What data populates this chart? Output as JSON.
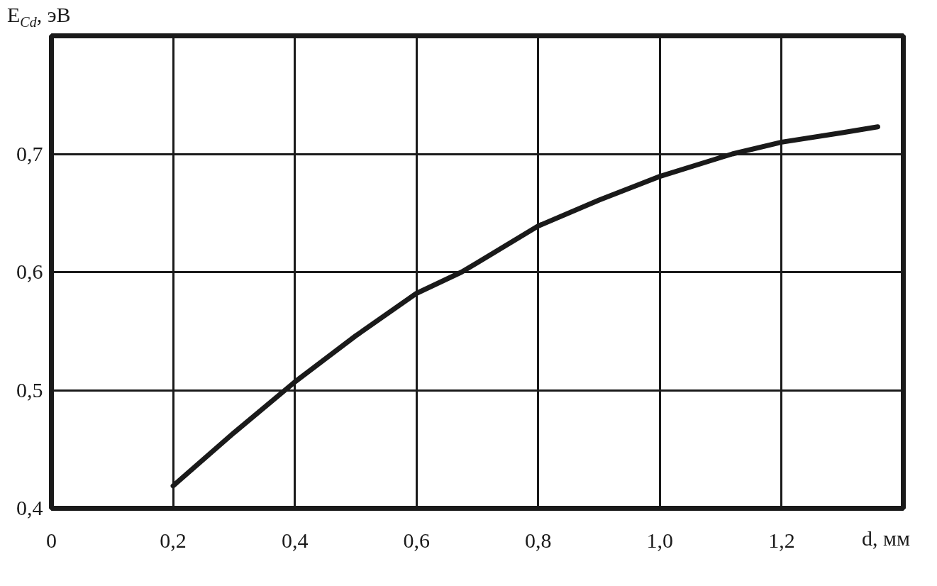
{
  "chart_data": {
    "type": "line",
    "xlabel": "d, мм",
    "ylabel": "E$_{Cd}$, эВ",
    "x": [
      0.2,
      0.3,
      0.4,
      0.5,
      0.6,
      0.674,
      0.7,
      0.8,
      0.9,
      1.0,
      1.1,
      1.119,
      1.2,
      1.3,
      1.358
    ],
    "series": [
      {
        "color": "#1a1a1a",
        "values": [
          0.419,
          0.464,
          0.507,
          0.546,
          0.582,
          0.6,
          0.608,
          0.639,
          0.661,
          0.681,
          0.697,
          0.7,
          0.71,
          0.718,
          0.723
        ]
      }
    ],
    "xlim": [
      0,
      1.4
    ],
    "ylim": [
      0.4,
      0.8
    ],
    "xticks": [
      0,
      {
        "value": 0.2,
        "label": "0,2"
      },
      {
        "value": 0.4,
        "label": "0,4"
      },
      {
        "value": 0.6,
        "label": "0,6"
      },
      {
        "value": 0.8,
        "label": "0,8"
      },
      {
        "value": 1.0,
        "label": "1,0"
      },
      {
        "value": 1.2,
        "label": "1,2"
      }
    ],
    "yticks": [
      {
        "value": 0.4,
        "label": "0,4"
      },
      {
        "value": 0.5,
        "label": "0,5"
      },
      {
        "value": 0.6,
        "label": "0,6"
      },
      {
        "value": 0.7,
        "label": "0,7"
      }
    ],
    "grid": true
  }
}
